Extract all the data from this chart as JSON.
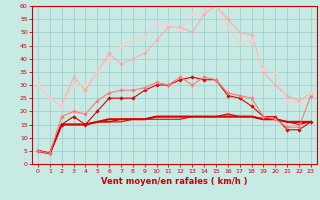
{
  "x": [
    0,
    1,
    2,
    3,
    4,
    5,
    6,
    7,
    8,
    9,
    10,
    11,
    12,
    13,
    14,
    15,
    16,
    17,
    18,
    19,
    20,
    21,
    22,
    23
  ],
  "series": [
    {
      "name": "dark_markers1",
      "color": "#dd0000",
      "linewidth": 0.8,
      "marker": "D",
      "markersize": 1.8,
      "values": [
        5,
        4,
        15,
        18,
        15,
        20,
        25,
        25,
        25,
        28,
        30,
        30,
        32,
        33,
        32,
        32,
        26,
        25,
        22,
        18,
        18,
        13,
        13,
        16
      ]
    },
    {
      "name": "flat_dark1",
      "color": "#dd0000",
      "linewidth": 1.5,
      "marker": null,
      "markersize": 0,
      "values": [
        5,
        4,
        15,
        15,
        15,
        16,
        17,
        17,
        17,
        17,
        18,
        18,
        18,
        18,
        18,
        18,
        18,
        18,
        18,
        17,
        17,
        16,
        16,
        16
      ]
    },
    {
      "name": "flat_dark2",
      "color": "#dd0000",
      "linewidth": 0.9,
      "marker": null,
      "markersize": 0,
      "values": [
        5,
        4,
        15,
        15,
        15,
        16,
        16,
        17,
        17,
        17,
        18,
        18,
        18,
        18,
        18,
        18,
        19,
        18,
        18,
        17,
        17,
        16,
        16,
        16
      ]
    },
    {
      "name": "flat_dark3",
      "color": "#dd0000",
      "linewidth": 0.8,
      "marker": null,
      "markersize": 0,
      "values": [
        5,
        4,
        15,
        15,
        15,
        16,
        16,
        16,
        17,
        17,
        17,
        17,
        17,
        18,
        18,
        18,
        18,
        18,
        18,
        17,
        17,
        16,
        15,
        16
      ]
    },
    {
      "name": "medium_markers1",
      "color": "#ff7777",
      "linewidth": 0.8,
      "marker": "D",
      "markersize": 1.8,
      "values": [
        5,
        4,
        18,
        20,
        19,
        24,
        27,
        28,
        28,
        29,
        31,
        30,
        33,
        30,
        33,
        32,
        27,
        26,
        25,
        18,
        17,
        14,
        14,
        26
      ]
    },
    {
      "name": "light_markers1",
      "color": "#ffaaaa",
      "linewidth": 0.8,
      "marker": "D",
      "markersize": 1.8,
      "values": [
        30,
        25,
        22,
        33,
        28,
        35,
        42,
        38,
        40,
        42,
        47,
        52,
        52,
        50,
        57,
        60,
        55,
        50,
        49,
        35,
        30,
        26,
        24,
        27
      ]
    },
    {
      "name": "lightest_markers1",
      "color": "#ffcccc",
      "linewidth": 0.8,
      "marker": "D",
      "markersize": 1.8,
      "values": [
        30,
        25,
        22,
        30,
        30,
        35,
        40,
        45,
        47,
        48,
        53,
        53,
        51,
        57,
        58,
        60,
        52,
        46,
        47,
        36,
        35,
        24,
        23,
        27
      ]
    }
  ],
  "xlabel": "Vent moyen/en rafales ( km/h )",
  "xlim": [
    -0.5,
    23.5
  ],
  "ylim": [
    0,
    60
  ],
  "yticks": [
    0,
    5,
    10,
    15,
    20,
    25,
    30,
    35,
    40,
    45,
    50,
    55,
    60
  ],
  "xticks": [
    0,
    1,
    2,
    3,
    4,
    5,
    6,
    7,
    8,
    9,
    10,
    11,
    12,
    13,
    14,
    15,
    16,
    17,
    18,
    19,
    20,
    21,
    22,
    23
  ],
  "background_color": "#c8eae4",
  "grid_color": "#99cccc",
  "axis_color": "#cc0000",
  "label_color": "#cc0000",
  "tick_fontsize": 4.5,
  "xlabel_fontsize": 6.0
}
